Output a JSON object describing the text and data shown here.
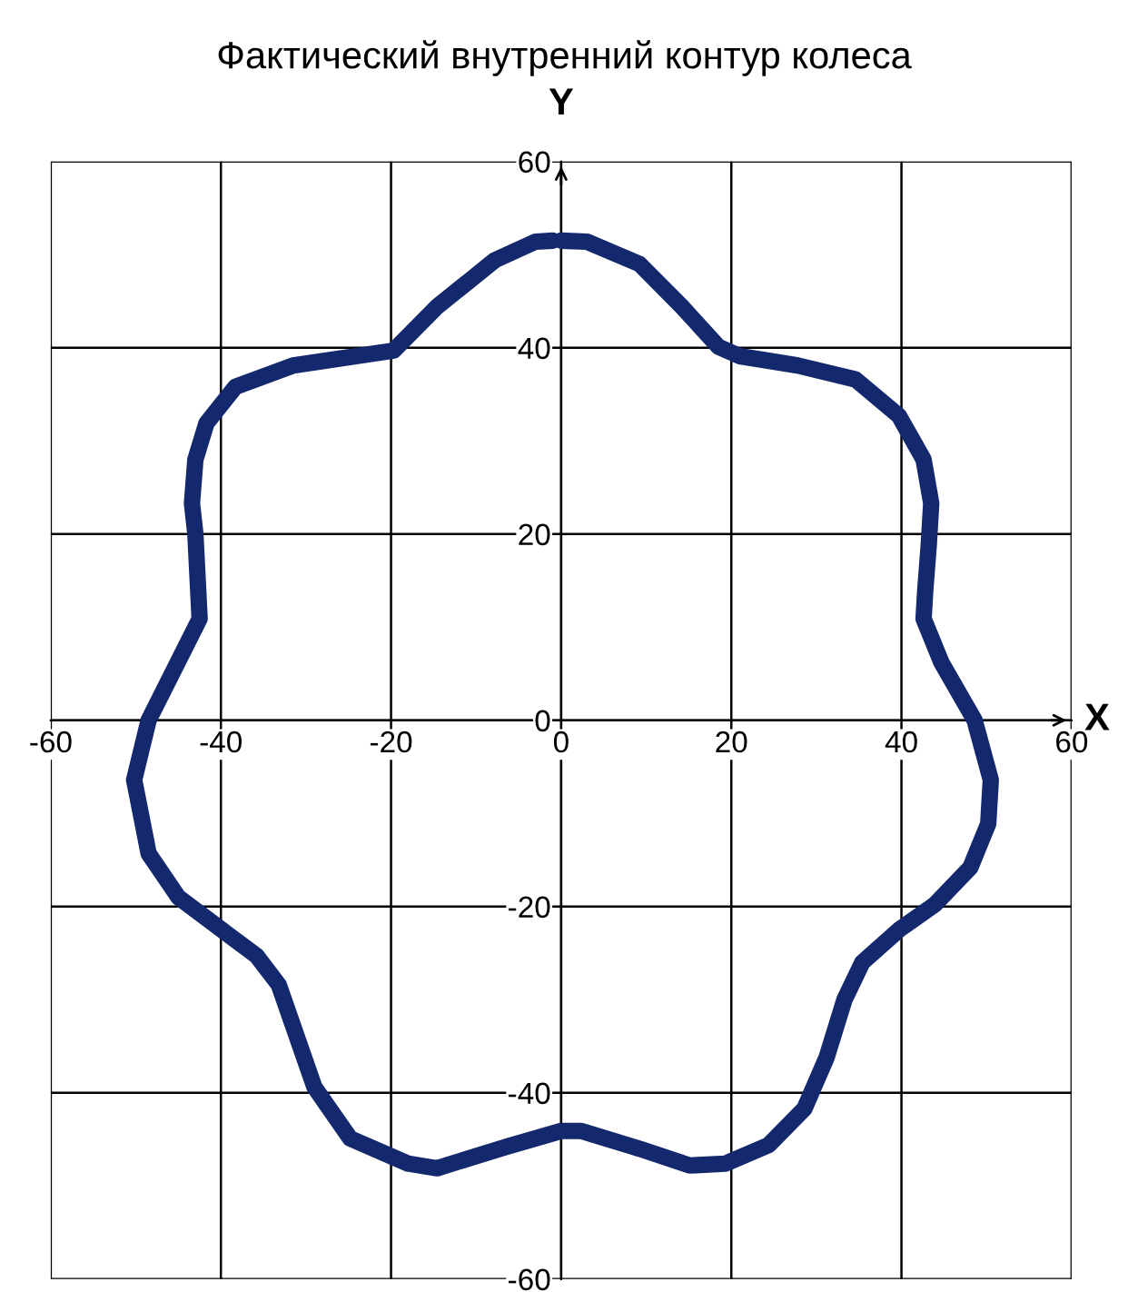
{
  "chart_data": {
    "type": "line",
    "title": "Фактический внутренний контур колеса",
    "xlabel": "X",
    "ylabel": "Y",
    "xlim": [
      -60,
      60
    ],
    "ylim": [
      -60,
      60
    ],
    "xticks": [
      -60,
      -40,
      -20,
      0,
      20,
      40,
      60
    ],
    "yticks": [
      -60,
      -40,
      -20,
      0,
      20,
      40,
      60
    ],
    "grid": true,
    "marker": "none",
    "line_style": "solid",
    "series": [
      {
        "color": "#14286e",
        "x": [
          0,
          3,
          9.2,
          14.2,
          18.5,
          21,
          27.8,
          34.6,
          39.7,
          42.6,
          43.5,
          43.2,
          42.8,
          42.6,
          44.7,
          48.6,
          50.5,
          50.2,
          48.1,
          43.9,
          39.7,
          35.4,
          33.3,
          31.2,
          28.6,
          24.4,
          19.3,
          15.1,
          9.2,
          2.4,
          0,
          -6.1,
          -14.6,
          -18,
          -24.8,
          -29,
          -33.2,
          -35.8,
          -45,
          -48.5,
          -50.2,
          -48.5,
          -42.5,
          -43,
          -43.4,
          -43,
          -41.7,
          -38.3,
          -31.5,
          -19.7,
          -14.6,
          -7.8,
          -3,
          -1
        ],
        "values": [
          51.5,
          51.4,
          49,
          44.4,
          40.1,
          39.1,
          38.1,
          36.6,
          32.7,
          28,
          23.3,
          18.7,
          14,
          10.9,
          6.2,
          0,
          -6.4,
          -11.1,
          -15.8,
          -19.8,
          -22.5,
          -26,
          -30,
          -36.2,
          -41.7,
          -45.6,
          -47.6,
          -47.8,
          -46,
          -44.1,
          -44.1,
          -45.7,
          -48.1,
          -47.6,
          -44.9,
          -39.4,
          -28.4,
          -25.3,
          -19,
          -14.3,
          -6.4,
          0,
          10.9,
          20,
          23.3,
          28,
          31.9,
          35.8,
          38.1,
          39.7,
          44.4,
          49.4,
          51.4,
          51.5
        ]
      }
    ]
  }
}
